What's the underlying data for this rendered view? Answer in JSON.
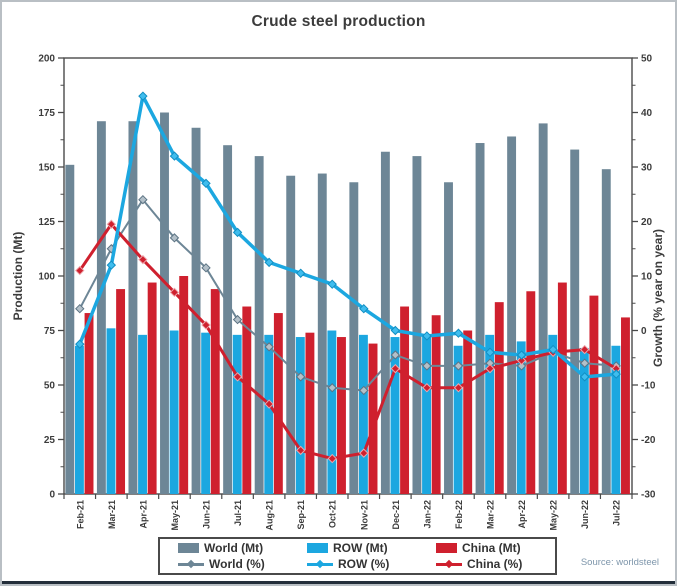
{
  "title": "Crude steel production",
  "source": "Source: worldsteel",
  "colors": {
    "world": "#6d8696",
    "row": "#1ca7e0",
    "china": "#cf202e",
    "axis": "#4a4a4a",
    "text": "#3c3c3c",
    "source_text": "#7e96ab"
  },
  "chart_data": {
    "type": "combo bar+line",
    "title": "Crude steel production",
    "categories": [
      "Feb-21",
      "Mar-21",
      "Apr-21",
      "May-21",
      "Jun-21",
      "Jul-21",
      "Aug-21",
      "Sep-21",
      "Oct-21",
      "Nov-21",
      "Dec-21",
      "Jan-22",
      "Feb-22",
      "Mar-22",
      "Apr-22",
      "May-22",
      "Jun-22",
      "Jul-22"
    ],
    "bar_series": [
      {
        "name": "World (Mt)",
        "color": "#6d8696",
        "values": [
          151,
          171,
          171,
          175,
          168,
          160,
          155,
          146,
          147,
          143,
          157,
          155,
          143,
          161,
          164,
          170,
          158,
          149
        ]
      },
      {
        "name": "ROW (Mt)",
        "color": "#1ca7e0",
        "values": [
          68,
          76,
          73,
          75,
          74,
          73,
          73,
          72,
          75,
          73,
          72,
          73,
          68,
          73,
          70,
          73,
          67,
          68
        ]
      },
      {
        "name": "China (Mt)",
        "color": "#cf202e",
        "values": [
          83,
          94,
          97,
          100,
          94,
          86,
          83,
          74,
          72,
          69,
          86,
          82,
          75,
          88,
          93,
          97,
          91,
          81
        ]
      }
    ],
    "line_series": [
      {
        "name": "World (%)",
        "color": "#6d8696",
        "marker_fill": "#b3c0c9",
        "marker_stroke": "#5c7383",
        "width": 2,
        "values": [
          4,
          15,
          24,
          17,
          11.5,
          2,
          -3,
          -8.5,
          -10.5,
          -11,
          -4.5,
          -6.5,
          -6.5,
          -6,
          -6.5,
          -4,
          -6,
          -6.5
        ]
      },
      {
        "name": "China (%)",
        "color": "#cf202e",
        "marker_fill": "#cf202e",
        "marker_stroke": "#eda6ac",
        "width": 3,
        "values": [
          11,
          19.5,
          13,
          7,
          1,
          -8.5,
          -13.5,
          -22,
          -23.5,
          -22.5,
          -7,
          -10.5,
          -10.5,
          -7,
          -5.5,
          -4,
          -3.5,
          -7
        ]
      },
      {
        "name": "ROW (%)",
        "color": "#1ca7e0",
        "marker_fill": "#3fbdee",
        "marker_stroke": "#128ec2",
        "width": 3.5,
        "values": [
          -2.5,
          12,
          43,
          32,
          27,
          18,
          12.5,
          10.5,
          8.5,
          4,
          0,
          -1,
          -0.5,
          -4,
          -4.5,
          -3.5,
          -8.5,
          -8
        ]
      }
    ],
    "left_axis": {
      "label": "Production (Mt)",
      "min": 0,
      "max": 200,
      "step": 25,
      "ticks": [
        0,
        25,
        50,
        75,
        100,
        125,
        150,
        175,
        200
      ]
    },
    "right_axis": {
      "label": "Growth (% year on year)",
      "min": -30,
      "max": 50,
      "step": 10,
      "ticks": [
        -30,
        -20,
        -10,
        0,
        10,
        20,
        30,
        40,
        50
      ]
    },
    "legend_position": "bottom",
    "grid": false
  },
  "legend": {
    "world_mt": "World (Mt)",
    "row_mt": "ROW (Mt)",
    "china_mt": "China (Mt)",
    "world_pct": "World (%)",
    "row_pct": "ROW (%)",
    "china_pct": "China (%)"
  }
}
